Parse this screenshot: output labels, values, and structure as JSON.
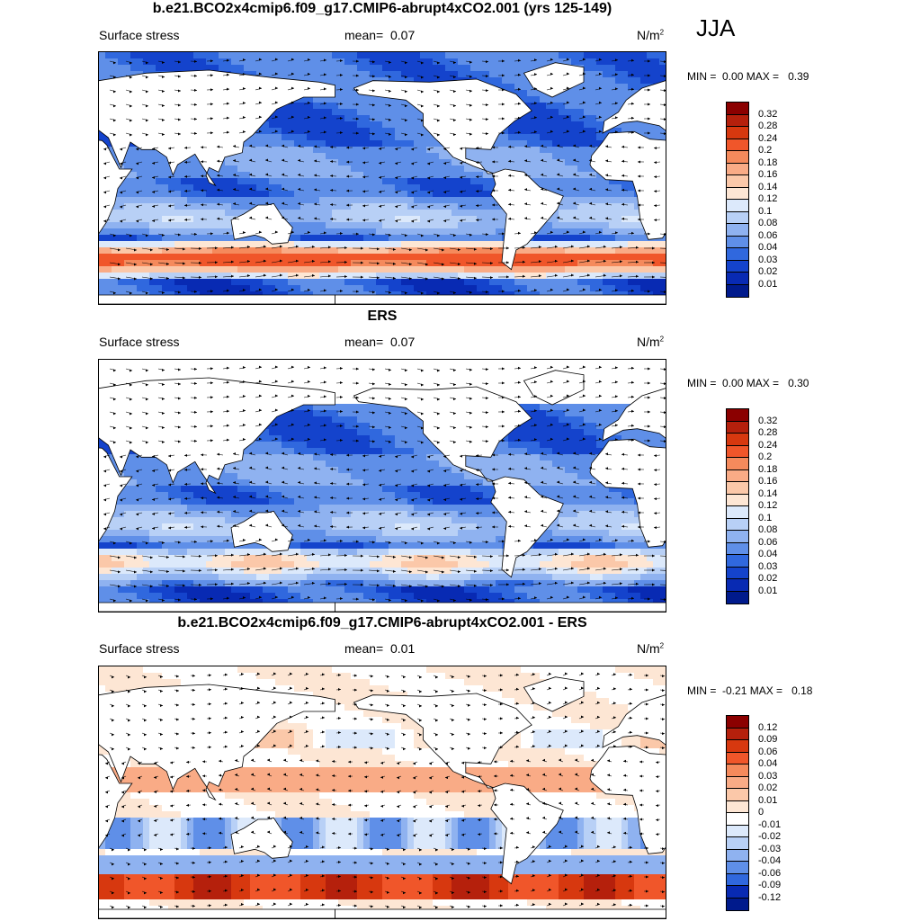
{
  "season": "JJA",
  "panels": [
    {
      "title": "b.e21.BCO2x4cmip6.f09_g17.CMIP6-abrupt4xCO2.001 (yrs 125-149)",
      "left_label": "Surface stress",
      "mean_label": "mean=",
      "mean_value": "0.07",
      "units": "N/m",
      "units_sup": "2",
      "min_label": "MIN =",
      "min_value": "0.00",
      "max_label": "MAX =",
      "max_value": "0.39",
      "colorbar": {
        "labels": [
          "0.32",
          "0.28",
          "0.24",
          "0.2",
          "0.18",
          "0.16",
          "0.14",
          "0.12",
          "0.1",
          "0.08",
          "0.06",
          "0.04",
          "0.03",
          "0.02",
          "0.01"
        ],
        "colors": [
          "#8b0000",
          "#b5200c",
          "#d7380f",
          "#f0562a",
          "#f58a5c",
          "#f9ab86",
          "#fbc8a9",
          "#fde6d4",
          "#dce9fb",
          "#b8d0f6",
          "#8fb2f0",
          "#5f8fe8",
          "#3068de",
          "#1443cc",
          "#082ab3",
          "#001a8c"
        ]
      },
      "field": "model"
    },
    {
      "title": "ERS",
      "left_label": "Surface stress",
      "mean_label": "mean=",
      "mean_value": "0.07",
      "units": "N/m",
      "units_sup": "2",
      "min_label": "MIN =",
      "min_value": "0.00",
      "max_label": "MAX =",
      "max_value": "0.30",
      "colorbar": {
        "labels": [
          "0.32",
          "0.28",
          "0.24",
          "0.2",
          "0.18",
          "0.16",
          "0.14",
          "0.12",
          "0.1",
          "0.08",
          "0.06",
          "0.04",
          "0.03",
          "0.02",
          "0.01"
        ],
        "colors": [
          "#8b0000",
          "#b5200c",
          "#d7380f",
          "#f0562a",
          "#f58a5c",
          "#f9ab86",
          "#fbc8a9",
          "#fde6d4",
          "#dce9fb",
          "#b8d0f6",
          "#8fb2f0",
          "#5f8fe8",
          "#3068de",
          "#1443cc",
          "#082ab3",
          "#001a8c"
        ]
      },
      "field": "obs"
    },
    {
      "title": "b.e21.BCO2x4cmip6.f09_g17.CMIP6-abrupt4xCO2.001 - ERS",
      "left_label": "Surface stress",
      "mean_label": "mean=",
      "mean_value": "0.01",
      "units": "N/m",
      "units_sup": "2",
      "min_label": "MIN =",
      "min_value": "-0.21",
      "max_label": "MAX =",
      "max_value": "0.18",
      "colorbar": {
        "labels": [
          "0.12",
          "0.09",
          "0.06",
          "0.04",
          "0.03",
          "0.02",
          "0.01",
          "0",
          "-0.01",
          "-0.02",
          "-0.03",
          "-0.04",
          "-0.06",
          "-0.09",
          "-0.12"
        ],
        "colors": [
          "#8b0000",
          "#b5200c",
          "#d7380f",
          "#f0562a",
          "#f58a5c",
          "#f9ab86",
          "#fbc8a9",
          "#fde6d4",
          "#ffffff",
          "#dce9fb",
          "#b8d0f6",
          "#8fb2f0",
          "#5f8fe8",
          "#3068de",
          "#082ab3",
          "#001a8c"
        ]
      },
      "field": "diff"
    }
  ]
}
